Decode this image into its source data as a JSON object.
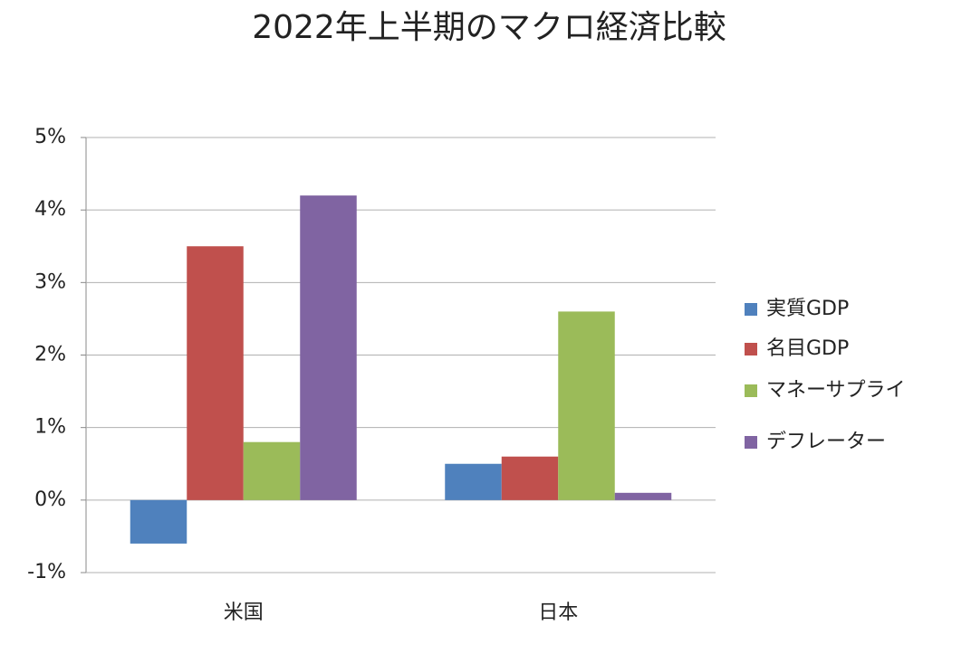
{
  "chart_data": {
    "type": "bar",
    "title": "2022年上半期のマクロ経済比較",
    "categories": [
      "米国",
      "日本"
    ],
    "series": [
      {
        "name": "実質GDP",
        "color": "#4f81bd",
        "values": [
          -0.6,
          0.5
        ]
      },
      {
        "name": "名目GDP",
        "color": "#c0504d",
        "values": [
          3.5,
          0.6
        ]
      },
      {
        "name": "マネーサプライ",
        "color": "#9bbb59",
        "values": [
          0.8,
          2.6
        ]
      },
      {
        "name": "デフレーター",
        "color": "#8064a2",
        "values": [
          4.2,
          0.1
        ]
      }
    ],
    "ylim": [
      -1,
      5
    ],
    "yticks": [
      {
        "value": -1,
        "label": "-1%"
      },
      {
        "value": 0,
        "label": "0%"
      },
      {
        "value": 1,
        "label": "1%"
      },
      {
        "value": 2,
        "label": "2%"
      },
      {
        "value": 3,
        "label": "3%"
      },
      {
        "value": 4,
        "label": "4%"
      },
      {
        "value": 5,
        "label": "5%"
      }
    ],
    "grid": true,
    "legend": "right"
  }
}
